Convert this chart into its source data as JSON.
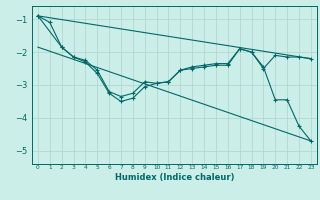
{
  "xlabel": "Humidex (Indice chaleur)",
  "xlim": [
    -0.5,
    23.5
  ],
  "ylim": [
    -5.4,
    -0.6
  ],
  "yticks": [
    -5,
    -4,
    -3,
    -2,
    -1
  ],
  "xticks": [
    0,
    1,
    2,
    3,
    4,
    5,
    6,
    7,
    8,
    9,
    10,
    11,
    12,
    13,
    14,
    15,
    16,
    17,
    18,
    19,
    20,
    21,
    22,
    23
  ],
  "background_color": "#cceee8",
  "grid_color": "#aad4cc",
  "line_color": "#006868",
  "line1": {
    "x": [
      0,
      1,
      2,
      3,
      4,
      5,
      6,
      7,
      8,
      9,
      10,
      11,
      12,
      13,
      14,
      15,
      16,
      17,
      18,
      19,
      20,
      21,
      22,
      23
    ],
    "y": [
      -0.9,
      -1.1,
      -1.85,
      -2.15,
      -2.25,
      -2.55,
      -3.2,
      -3.35,
      -3.25,
      -2.9,
      -2.95,
      -2.9,
      -2.55,
      -2.5,
      -2.45,
      -2.4,
      -2.4,
      -1.9,
      -2.0,
      -2.45,
      -3.45,
      -3.45,
      -4.25,
      -4.7
    ],
    "marker": "+"
  },
  "line2": {
    "x": [
      0,
      2,
      3,
      4,
      5,
      6,
      7,
      8,
      9,
      10,
      11,
      12,
      13,
      14,
      15,
      16,
      17,
      18,
      19,
      20,
      21,
      22,
      23
    ],
    "y": [
      -0.9,
      -1.85,
      -2.15,
      -2.3,
      -2.65,
      -3.25,
      -3.5,
      -3.4,
      -3.05,
      -2.95,
      -2.9,
      -2.55,
      -2.45,
      -2.4,
      -2.35,
      -2.35,
      -1.9,
      -2.0,
      -2.5,
      -2.1,
      -2.15,
      -2.15,
      -2.2
    ],
    "marker": "+"
  },
  "line3_straight": {
    "x": [
      0,
      23
    ],
    "y": [
      -0.9,
      -2.2
    ]
  },
  "line4_straight": {
    "x": [
      0,
      23
    ],
    "y": [
      -1.85,
      -4.7
    ]
  }
}
